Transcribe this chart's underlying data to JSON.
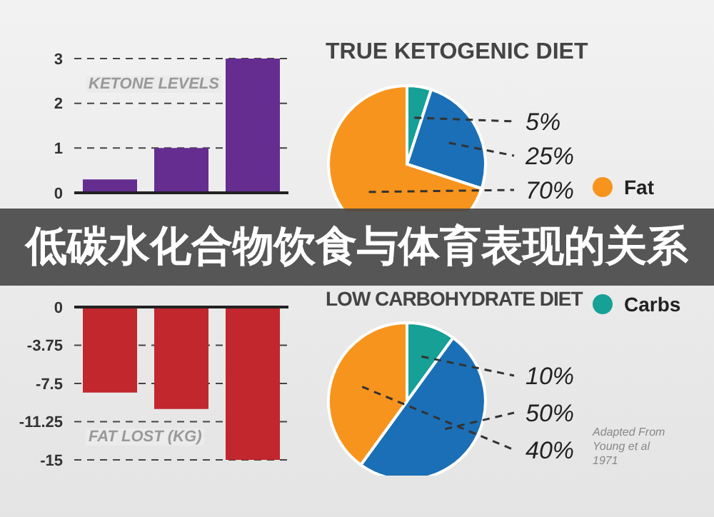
{
  "chart_data": [
    {
      "type": "bar",
      "title": "KETONE LEVELS",
      "categories": [
        null,
        null,
        null
      ],
      "values": [
        0.3,
        1,
        3
      ],
      "color": "#652d90",
      "ylim": [
        0,
        3
      ],
      "yticks": [
        0,
        1,
        2,
        3
      ],
      "grid": "y"
    },
    {
      "type": "bar",
      "title": "FAT LOST (KG)",
      "categories": [
        null,
        null,
        null
      ],
      "values": [
        -8.4,
        -10,
        -15
      ],
      "color": "#c1272d",
      "ylim": [
        -15,
        0
      ],
      "yticks": [
        0,
        -3.75,
        -7.5,
        -11.25,
        -15
      ],
      "grid": "y"
    },
    {
      "type": "pie",
      "title": "TRUE KETOGENIC DIET",
      "categories": [
        "Carbs",
        null,
        "Fat"
      ],
      "values": [
        5,
        25,
        70
      ],
      "value_labels": [
        "5%",
        "25%",
        "70%"
      ],
      "colors": [
        "#16a096",
        "#1b6fb6",
        "#f7941d"
      ],
      "legend": "right"
    },
    {
      "type": "pie",
      "title": "LOW CARBOHYDRATE DIET",
      "categories": [
        null,
        null,
        null
      ],
      "values": [
        10,
        50,
        40
      ],
      "value_labels": [
        "10%",
        "50%",
        "40%"
      ],
      "colors": [
        "#16a096",
        "#1b6fb6",
        "#f7941d"
      ],
      "annotations": [
        "Adapted From Young et al 1971"
      ]
    },
    {
      "type": "other",
      "title": "低碳水化合物饮食与体育表现的关系"
    }
  ]
}
